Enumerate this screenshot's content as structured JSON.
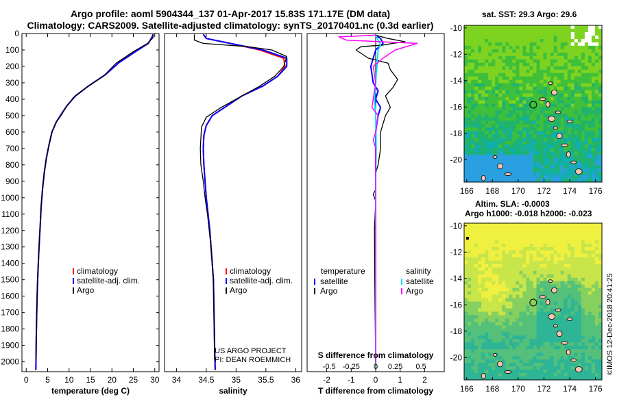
{
  "title_line1": "Argo profile: aoml 5904344_137 01-Apr-2017 15.83S 171.17E (DM data)",
  "title_line2": "Climatology: CARS2009. Satellite-adjusted climatology: synTS_20170401.nc (0.3d earlier)",
  "map1_title": "sat. SST: 29.3 Argo: 29.6",
  "map2_title_line1": "Altim. SLA: -0.0003",
  "map2_title_line2": "Argo h1000: -0.018 h2000: -0.023",
  "credit": "©IMOS 12-Dec-2018 20:41:25",
  "project_line1": "US ARGO PROJECT",
  "project_line2": "PI: DEAN ROEMMICH",
  "colors": {
    "climatology": "#ff0000",
    "satellite": "#0000ff",
    "argo": "#000000",
    "sal_satellite": "#00e5ff",
    "sal_argo": "#ff00ff"
  },
  "chart_data": [
    {
      "type": "line",
      "name": "temperature",
      "xlabel": "temperature (deg C)",
      "xlim": [
        -1,
        31
      ],
      "ylim": [
        2060,
        0
      ],
      "xticks": [
        0,
        5,
        10,
        15,
        20,
        25,
        30
      ],
      "yticks": [
        0,
        100,
        200,
        300,
        400,
        500,
        600,
        700,
        800,
        900,
        1000,
        1100,
        1200,
        1300,
        1400,
        1500,
        1600,
        1700,
        1800,
        1900,
        2000
      ],
      "ytick_labels": [
        "0",
        "100",
        "200",
        "300",
        "400",
        "500",
        "600",
        "700",
        "800",
        "900",
        "1000",
        "1100",
        "1200",
        "1300",
        "1400",
        "1500",
        "1600",
        "1700",
        "1800",
        "1900",
        "2000"
      ],
      "legend": [
        "climatology",
        "satellite-adj. clim.",
        "Argo"
      ],
      "series": [
        {
          "name": "climatology",
          "x": [
            29.6,
            29.4,
            28.5,
            25.5,
            21.5,
            18.5,
            14.5,
            11.5,
            9.5,
            8.2,
            7.0,
            6.0,
            5.3,
            4.7,
            4.2,
            3.8,
            3.5,
            3.3,
            3.1,
            2.9,
            2.75,
            2.6,
            2.45,
            2.35,
            2.3,
            2.25
          ],
          "y": [
            5,
            20,
            60,
            110,
            180,
            250,
            320,
            380,
            440,
            490,
            540,
            600,
            680,
            760,
            850,
            950,
            1050,
            1150,
            1250,
            1350,
            1450,
            1550,
            1700,
            1850,
            1950,
            2050
          ]
        },
        {
          "name": "satellite-adj. clim.",
          "x": [
            29.6,
            29.4,
            28.5,
            25.5,
            21.5,
            18.5,
            14.5,
            11.5,
            9.5,
            8.2,
            7.0,
            6.0,
            5.3,
            4.7,
            4.2,
            3.8,
            3.5,
            3.3,
            3.1,
            2.9,
            2.75,
            2.6,
            2.45,
            2.35,
            2.3,
            2.25
          ],
          "y": [
            5,
            20,
            60,
            110,
            180,
            250,
            320,
            380,
            440,
            490,
            540,
            600,
            680,
            760,
            850,
            950,
            1050,
            1150,
            1250,
            1350,
            1450,
            1550,
            1700,
            1850,
            1950,
            2050
          ]
        },
        {
          "name": "Argo",
          "x": [
            29.6,
            29.6,
            28.3,
            25.0,
            21.0,
            18.0,
            14.0,
            11.0,
            9.3,
            8.1,
            7.0,
            6.0,
            5.3,
            4.7,
            4.2,
            3.8,
            3.5,
            3.3,
            3.1,
            2.9,
            2.75,
            2.6,
            2.45,
            2.35,
            2.3
          ],
          "y": [
            5,
            25,
            60,
            110,
            180,
            260,
            330,
            390,
            450,
            500,
            540,
            600,
            680,
            760,
            850,
            950,
            1050,
            1150,
            1250,
            1350,
            1450,
            1550,
            1700,
            1850,
            1990
          ]
        }
      ]
    },
    {
      "type": "line",
      "name": "salinity",
      "xlabel": "salinity",
      "xlim": [
        33.8,
        36.1
      ],
      "ylim": [
        2060,
        0
      ],
      "xticks": [
        34,
        34.5,
        35,
        35.5,
        36
      ],
      "xtick_labels": [
        "34",
        "34.5",
        "35",
        "35.5",
        "36"
      ],
      "legend": [
        "climatology",
        "satellite-adj. clim.",
        "Argo"
      ],
      "series": [
        {
          "name": "climatology",
          "x": [
            34.45,
            34.5,
            34.9,
            35.4,
            35.8,
            35.82,
            35.7,
            35.45,
            35.1,
            34.85,
            34.6,
            34.5,
            34.46,
            34.45,
            34.46,
            34.48,
            34.5,
            34.53,
            34.56,
            34.58,
            34.6,
            34.62,
            34.63,
            34.64,
            34.65
          ],
          "y": [
            5,
            30,
            60,
            100,
            150,
            200,
            260,
            320,
            380,
            440,
            500,
            560,
            620,
            700,
            800,
            900,
            1000,
            1100,
            1200,
            1300,
            1400,
            1500,
            1700,
            1900,
            2050
          ]
        },
        {
          "name": "satellite-adj. clim.",
          "x": [
            34.45,
            34.5,
            34.9,
            35.45,
            35.85,
            35.85,
            35.7,
            35.45,
            35.1,
            34.85,
            34.6,
            34.5,
            34.46,
            34.45,
            34.46,
            34.48,
            34.5,
            34.53,
            34.56,
            34.58,
            34.6,
            34.62,
            34.63,
            34.64,
            34.65
          ],
          "y": [
            5,
            30,
            60,
            100,
            150,
            200,
            260,
            320,
            380,
            440,
            500,
            560,
            620,
            700,
            800,
            900,
            1000,
            1100,
            1200,
            1300,
            1400,
            1500,
            1700,
            1900,
            2050
          ]
        },
        {
          "name": "Argo",
          "x": [
            34.3,
            34.3,
            34.45,
            35.2,
            35.6,
            35.85,
            35.8,
            35.65,
            35.4,
            35.05,
            34.75,
            34.5,
            34.42,
            34.4,
            34.41,
            34.45,
            34.48,
            34.52,
            34.55,
            34.58,
            34.6,
            34.62,
            34.63,
            34.64
          ],
          "y": [
            5,
            40,
            60,
            80,
            100,
            140,
            200,
            260,
            320,
            390,
            450,
            510,
            570,
            700,
            800,
            900,
            1000,
            1100,
            1200,
            1300,
            1400,
            1500,
            1700,
            1990
          ]
        }
      ]
    },
    {
      "type": "line",
      "name": "difference",
      "xlabel": "T difference from climatology",
      "xlabel_top": "S difference from climatology",
      "xlim": [
        -2.8,
        2.8
      ],
      "ylim": [
        2060,
        0
      ],
      "xticks": [
        -2,
        -1,
        0,
        1,
        2
      ],
      "xtick_labels": [
        "-2",
        "-1",
        "0",
        "1",
        "2"
      ],
      "sticks": [
        -1.9,
        -1.0,
        0.8,
        1.85
      ],
      "stick_labels": [
        "-0.5",
        "-0.25",
        "0.25",
        "0.5"
      ],
      "stick_zero_label": "0",
      "legend_left_title": "temperature",
      "legend_left": [
        "satellite",
        "Argo"
      ],
      "legend_right_title": "salinity",
      "legend_right": [
        "satellite",
        "Argo"
      ],
      "series": [
        {
          "name": "T satellite",
          "x": [
            0,
            0.2,
            0.3,
            0.0,
            -0.2,
            -0.1,
            0.1,
            0.0,
            0.2,
            0.1,
            0.0,
            0.0,
            0.0,
            0.0,
            0.0,
            0.0,
            0.0,
            0.0
          ],
          "y": [
            10,
            30,
            60,
            100,
            200,
            300,
            350,
            400,
            450,
            500,
            600,
            700,
            800,
            900,
            1000,
            1500,
            1800,
            2000
          ]
        },
        {
          "name": "T Argo",
          "x": [
            0,
            0.5,
            1.2,
            0.7,
            0.3,
            -0.6,
            -0.8,
            -0.3,
            0.5,
            0.6,
            0.9,
            0.7,
            0.4,
            0.6,
            0.4,
            0.3,
            0.2,
            0.2,
            0.1,
            0.0,
            0.0,
            0.0,
            -0.1,
            -0.05,
            0.0,
            -0.05,
            -0.03,
            0.0
          ],
          "y": [
            10,
            30,
            50,
            60,
            70,
            80,
            100,
            150,
            180,
            220,
            280,
            330,
            380,
            450,
            500,
            550,
            600,
            700,
            800,
            850,
            900,
            950,
            980,
            1000,
            1020,
            1200,
            1600,
            2000
          ]
        },
        {
          "name": "S satellite",
          "x": [
            0,
            0.1,
            0.2,
            0.1,
            0.05,
            0.0,
            -0.05,
            0.0,
            0.02,
            0.0,
            0.0,
            0.0,
            0.0,
            0.0
          ],
          "y": [
            10,
            40,
            70,
            100,
            200,
            300,
            400,
            500,
            700,
            900,
            1200,
            1500,
            1800,
            2000
          ]
        },
        {
          "name": "S Argo",
          "x": [
            0,
            -1.5,
            -1.2,
            1.7,
            0.8,
            0.3,
            -0.1,
            0.0,
            -0.15,
            0.1,
            0.0,
            -0.1,
            0.0,
            0.0,
            0.0,
            0.0,
            0.0
          ],
          "y": [
            10,
            20,
            40,
            60,
            100,
            150,
            200,
            300,
            450,
            500,
            600,
            650,
            700,
            800,
            1100,
            1500,
            2000
          ]
        }
      ]
    },
    {
      "type": "heatmap",
      "name": "sst-map",
      "xlim": [
        165.8,
        176.5
      ],
      "ylim": [
        -21.7,
        -9.8
      ],
      "xticks": [
        166,
        168,
        170,
        172,
        174,
        176
      ],
      "yticks": [
        -10,
        -12,
        -14,
        -16,
        -18,
        -20
      ],
      "ytick_labels": [
        "-10",
        "-12",
        "-14",
        "-16",
        "-18",
        "-20"
      ],
      "argo_position": {
        "lon": 171.17,
        "lat": -15.83
      }
    },
    {
      "type": "heatmap",
      "name": "sla-map",
      "xlim": [
        165.8,
        176.5
      ],
      "ylim": [
        -21.7,
        -9.8
      ],
      "xticks": [
        166,
        168,
        170,
        172,
        174,
        176
      ],
      "yticks": [
        -10,
        -12,
        -14,
        -16,
        -18,
        -20
      ],
      "ytick_labels": [
        "-10",
        "-12",
        "-14",
        "-16",
        "-18",
        "-20"
      ],
      "argo_position": {
        "lon": 171.17,
        "lat": -15.83
      }
    }
  ]
}
